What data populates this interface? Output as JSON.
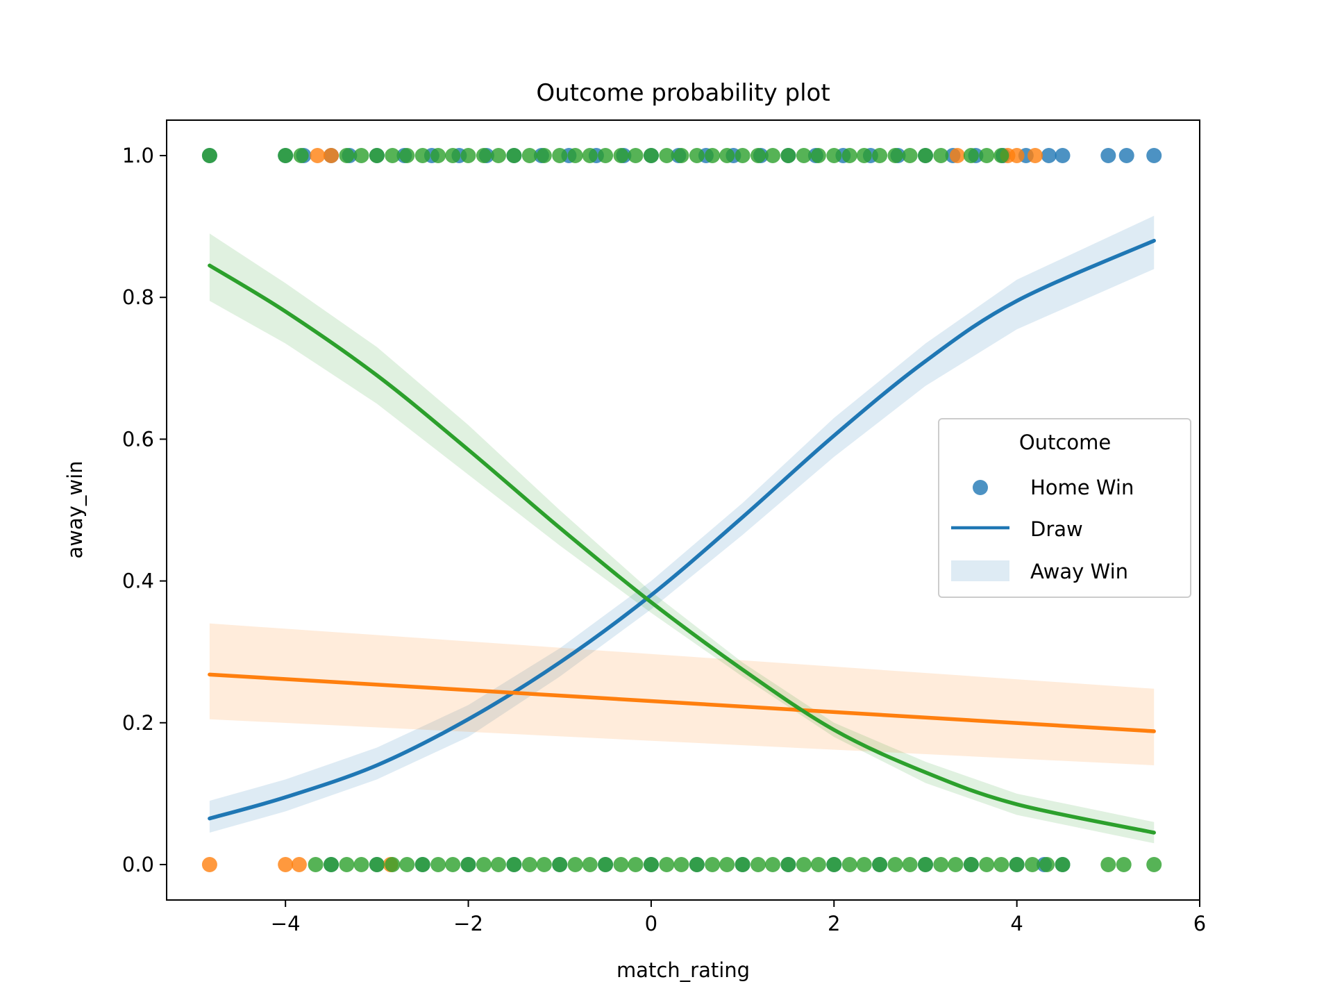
{
  "chart_data": {
    "type": "scatter",
    "title": "Outcome probability plot",
    "xlabel": "match_rating",
    "ylabel": "away_win",
    "xlim": [
      -5.3,
      6.0
    ],
    "ylim": [
      -0.05,
      1.05
    ],
    "x_ticks": [
      -4,
      -2,
      0,
      2,
      4,
      6
    ],
    "x_tick_labels": [
      "−4",
      "−2",
      "0",
      "2",
      "4",
      "6"
    ],
    "y_ticks": [
      0.0,
      0.2,
      0.4,
      0.6,
      0.8,
      1.0
    ],
    "y_tick_labels": [
      "0.0",
      "0.2",
      "0.4",
      "0.6",
      "0.8",
      "1.0"
    ],
    "grid": false,
    "legend": {
      "title": "Outcome",
      "placement": "center-right",
      "entries": [
        {
          "label": "Home Win",
          "kind": "marker",
          "color": "#1f77b4"
        },
        {
          "label": "Draw",
          "kind": "line",
          "color": "#1f77b4"
        },
        {
          "label": "Away Win",
          "kind": "band",
          "color": "#1f77b4"
        }
      ]
    },
    "series": [
      {
        "color": "#1f77b4",
        "fit": {
          "x": [
            -4.83,
            -4.0,
            -3.0,
            -2.0,
            -1.0,
            0.0,
            1.0,
            2.0,
            3.0,
            4.0,
            5.5
          ],
          "y": [
            0.065,
            0.095,
            0.14,
            0.205,
            0.285,
            0.38,
            0.49,
            0.605,
            0.71,
            0.795,
            0.88
          ],
          "lower": [
            0.045,
            0.075,
            0.12,
            0.18,
            0.265,
            0.36,
            0.465,
            0.575,
            0.675,
            0.755,
            0.84
          ],
          "upper": [
            0.09,
            0.12,
            0.165,
            0.225,
            0.305,
            0.4,
            0.51,
            0.63,
            0.735,
            0.825,
            0.915
          ]
        },
        "points": {
          "y1": [
            -4.83,
            -4.0,
            -3.8,
            -3.5,
            -3.3,
            -3.0,
            -2.7,
            -2.4,
            -2.1,
            -1.8,
            -1.5,
            -1.2,
            -0.9,
            -0.6,
            -0.3,
            0.0,
            0.3,
            0.6,
            0.9,
            1.2,
            1.5,
            1.8,
            2.1,
            2.4,
            2.7,
            3.0,
            3.3,
            3.55,
            3.85,
            4.1,
            4.35,
            4.5,
            5.0,
            5.2,
            5.5
          ],
          "y0": [
            -3.5,
            -3.0,
            -2.5,
            -2.0,
            -1.5,
            -1.0,
            -0.5,
            0.0,
            0.5,
            1.0,
            1.5,
            2.0,
            2.5,
            3.0,
            3.5,
            4.0,
            4.3,
            4.5
          ]
        }
      },
      {
        "color": "#ff7f0e",
        "fit": {
          "x": [
            -4.83,
            5.5
          ],
          "y": [
            0.268,
            0.188
          ],
          "lower": [
            0.205,
            0.14
          ],
          "upper": [
            0.34,
            0.248
          ]
        },
        "points": {
          "y1": [
            -3.65,
            -3.5,
            3.35,
            3.9,
            4.0,
            4.2
          ],
          "y0": [
            -4.83,
            -4.0,
            -3.85,
            -2.85
          ]
        }
      },
      {
        "color": "#2ca02c",
        "fit": {
          "x": [
            -4.83,
            -4.0,
            -3.0,
            -2.0,
            -1.0,
            0.0,
            1.0,
            2.0,
            3.0,
            4.0,
            5.5
          ],
          "y": [
            0.845,
            0.78,
            0.69,
            0.585,
            0.475,
            0.37,
            0.275,
            0.19,
            0.13,
            0.085,
            0.045
          ],
          "lower": [
            0.795,
            0.735,
            0.65,
            0.55,
            0.45,
            0.355,
            0.265,
            0.18,
            0.115,
            0.07,
            0.03
          ],
          "upper": [
            0.89,
            0.82,
            0.73,
            0.62,
            0.5,
            0.385,
            0.285,
            0.2,
            0.145,
            0.1,
            0.06
          ]
        },
        "points": {
          "y1": [
            -4.83,
            -4.0,
            -3.83,
            -3.33,
            -3.17,
            -3.0,
            -2.83,
            -2.67,
            -2.5,
            -2.33,
            -2.17,
            -2.0,
            -1.83,
            -1.67,
            -1.5,
            -1.33,
            -1.17,
            -1.0,
            -0.83,
            -0.67,
            -0.5,
            -0.33,
            -0.17,
            0.0,
            0.17,
            0.33,
            0.5,
            0.67,
            0.83,
            1.0,
            1.17,
            1.33,
            1.5,
            1.67,
            1.83,
            2.0,
            2.17,
            2.33,
            2.5,
            2.67,
            2.83,
            3.0,
            3.17,
            3.5,
            3.67,
            3.83
          ],
          "y0": [
            -3.67,
            -3.5,
            -3.33,
            -3.17,
            -3.0,
            -2.83,
            -2.67,
            -2.5,
            -2.33,
            -2.17,
            -2.0,
            -1.83,
            -1.67,
            -1.5,
            -1.33,
            -1.17,
            -1.0,
            -0.83,
            -0.67,
            -0.5,
            -0.33,
            -0.17,
            0.0,
            0.17,
            0.33,
            0.5,
            0.67,
            0.83,
            1.0,
            1.17,
            1.33,
            1.5,
            1.67,
            1.83,
            2.0,
            2.17,
            2.33,
            2.5,
            2.67,
            2.83,
            3.0,
            3.17,
            3.33,
            3.5,
            3.67,
            3.83,
            4.0,
            4.17,
            4.33,
            4.5,
            5.0,
            5.17,
            5.5
          ]
        }
      }
    ]
  }
}
